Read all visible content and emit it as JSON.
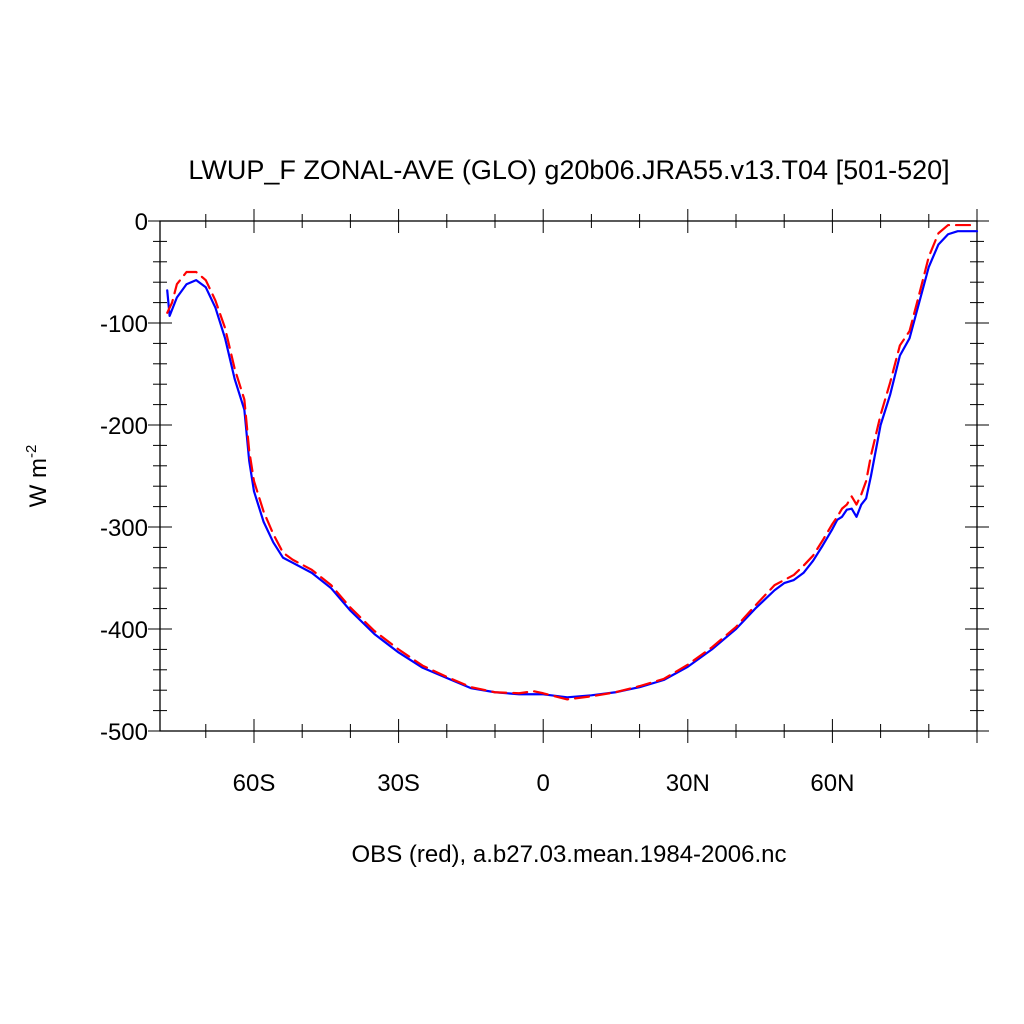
{
  "chart_data": {
    "type": "line",
    "title": "LWUP_F ZONAL-AVE (GLO) g20b06.JRA55.v13.T04 [501-520]",
    "xlabel": "OBS (red), a.b27.03.mean.1984-2006.nc",
    "ylabel": {
      "base": "W m",
      "superscript": "-2"
    },
    "xlim": [
      -79.5,
      90
    ],
    "ylim": [
      -500,
      0
    ],
    "x_ticks": [
      {
        "value": -60,
        "label": "60S"
      },
      {
        "value": -30,
        "label": "30S"
      },
      {
        "value": 0,
        "label": "0"
      },
      {
        "value": 30,
        "label": "30N"
      },
      {
        "value": 60,
        "label": "60N"
      }
    ],
    "y_ticks": [
      {
        "value": 0,
        "label": "0"
      },
      {
        "value": -100,
        "label": "-100"
      },
      {
        "value": -200,
        "label": "-200"
      },
      {
        "value": -300,
        "label": "-300"
      },
      {
        "value": -400,
        "label": "-400"
      },
      {
        "value": -500,
        "label": "-500"
      }
    ],
    "series": [
      {
        "color": "#0000ff",
        "style": "solid",
        "x": [
          -78,
          -77.5,
          -76,
          -74,
          -72,
          -70,
          -68,
          -66,
          -64,
          -62,
          -61,
          -60,
          -58,
          -56,
          -54,
          -52,
          -48,
          -44,
          -40,
          -35,
          -30,
          -25,
          -20,
          -15,
          -10,
          -5,
          0,
          5,
          10,
          15,
          20,
          25,
          30,
          35,
          40,
          44,
          48,
          50,
          52,
          54,
          56,
          58,
          60,
          61,
          62,
          63,
          64,
          65,
          66,
          67,
          68,
          70,
          72,
          74,
          76,
          78,
          80,
          82,
          84,
          86,
          90
        ],
        "y": [
          -68,
          -93,
          -75,
          -62,
          -58,
          -65,
          -85,
          -115,
          -155,
          -185,
          -235,
          -265,
          -295,
          -315,
          -330,
          -335,
          -345,
          -360,
          -382,
          -405,
          -423,
          -438,
          -448,
          -458,
          -462,
          -464,
          -464,
          -467,
          -465,
          -462,
          -457,
          -450,
          -437,
          -420,
          -400,
          -380,
          -362,
          -355,
          -352,
          -345,
          -333,
          -318,
          -302,
          -293,
          -290,
          -283,
          -282,
          -290,
          -278,
          -272,
          -250,
          -200,
          -170,
          -132,
          -115,
          -80,
          -45,
          -23,
          -13,
          -10,
          -10
        ]
      },
      {
        "color": "#ff0000",
        "style": "dashed",
        "x": [
          -78,
          -77,
          -76,
          -74,
          -72,
          -70,
          -68,
          -66,
          -64,
          -62,
          -61,
          -60,
          -58,
          -56,
          -54,
          -52,
          -48,
          -44,
          -40,
          -35,
          -30,
          -25,
          -20,
          -15,
          -10,
          -5,
          -2,
          0,
          5,
          10,
          15,
          20,
          25,
          30,
          35,
          40,
          44,
          48,
          50,
          52,
          54,
          56,
          58,
          60,
          61,
          62,
          63,
          64,
          65,
          66,
          67,
          68,
          70,
          72,
          74,
          76,
          78,
          80,
          82,
          84,
          86,
          90
        ],
        "y": [
          -90,
          -80,
          -62,
          -50,
          -50,
          -58,
          -78,
          -105,
          -145,
          -175,
          -225,
          -255,
          -285,
          -307,
          -325,
          -332,
          -342,
          -357,
          -379,
          -402,
          -420,
          -436,
          -447,
          -457,
          -462,
          -463,
          -461,
          -463,
          -469,
          -466,
          -462,
          -456,
          -449,
          -435,
          -418,
          -398,
          -377,
          -357,
          -352,
          -347,
          -338,
          -328,
          -313,
          -297,
          -290,
          -282,
          -278,
          -270,
          -278,
          -268,
          -255,
          -230,
          -190,
          -158,
          -122,
          -108,
          -72,
          -35,
          -12,
          -4,
          -4,
          -4
        ]
      }
    ]
  }
}
